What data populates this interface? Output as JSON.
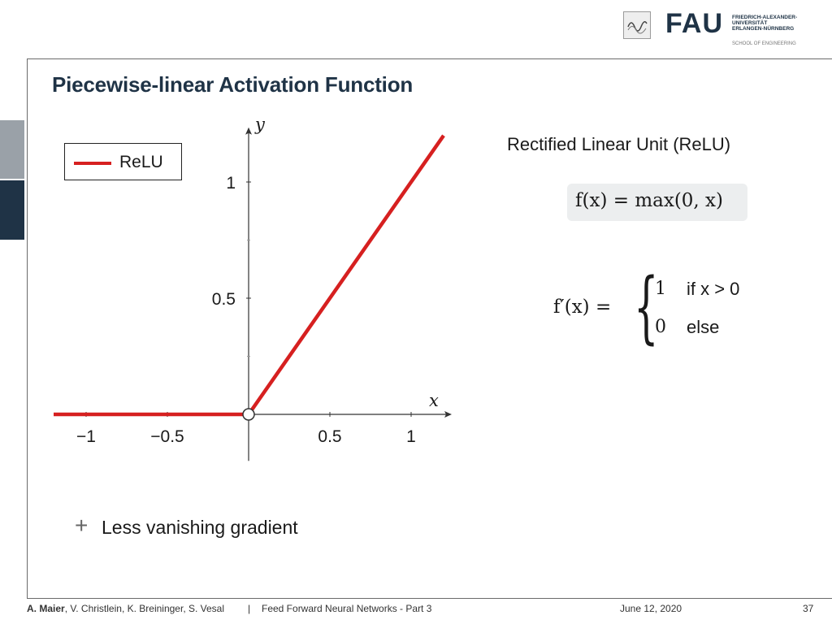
{
  "slide": {
    "title": "Piecewise-linear Activation Function",
    "right_title": "Rectified Linear Unit (ReLU)",
    "formula": "f(x) = max(0, x)",
    "derivative_lhs": "f′(x) =",
    "cases": [
      {
        "value": "1",
        "condition": "if x > 0"
      },
      {
        "value": "0",
        "condition": "else"
      }
    ],
    "bullet_symbol": "+",
    "bullet_text": "Less vanishing gradient"
  },
  "logo": {
    "wordmark": "FAU",
    "line1": "FRIEDRICH-ALEXANDER-",
    "line2": "UNIVERSITÄT",
    "line3": "ERLANGEN-NÜRNBERG",
    "subtitle": "SCHOOL OF ENGINEERING"
  },
  "footer": {
    "author_bold": "A. Maier",
    "authors_rest": ", V. Christlein, K. Breininger, S. Vesal",
    "separator": "|",
    "lecture": "Feed Forward Neural Networks - Part 3",
    "date": "June 12, 2020",
    "page": "37"
  },
  "colors": {
    "series": "#d62020",
    "title": "#1f3346",
    "formula_bg": "#eceeef"
  },
  "chart_data": {
    "type": "line",
    "title": "",
    "xlabel": "x",
    "ylabel": "y",
    "xlim": [
      -1.2,
      1.2
    ],
    "ylim": [
      -0.2,
      1.2
    ],
    "x_ticks": [
      -1,
      -0.5,
      0.5,
      1
    ],
    "x_tick_labels": [
      "−1",
      "−0.5",
      "0.5",
      "1"
    ],
    "y_ticks": [
      0.5,
      1
    ],
    "y_tick_labels": [
      "0.5",
      "1"
    ],
    "grid": false,
    "legend_position": "top-left",
    "series": [
      {
        "name": "ReLU",
        "color": "#d62020",
        "x": [
          -1.2,
          0,
          1.2
        ],
        "y": [
          0,
          0,
          1.2
        ]
      }
    ],
    "markers": [
      {
        "x": 0,
        "y": 0,
        "style": "open-circle"
      }
    ]
  }
}
